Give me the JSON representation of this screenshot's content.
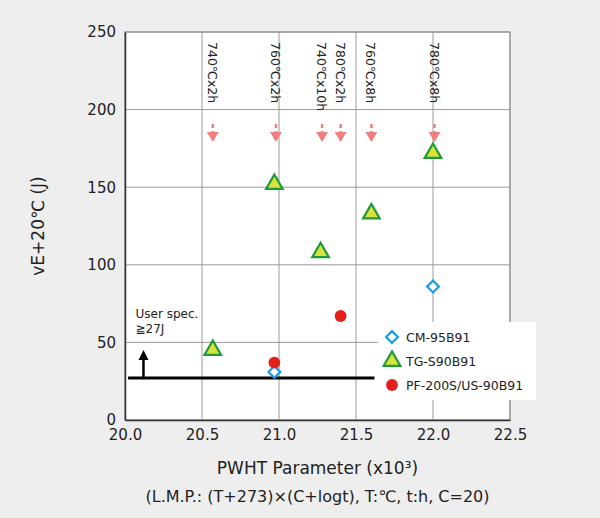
{
  "chart_data": {
    "type": "scatter",
    "x_label": "PWHT Parameter (x10³)",
    "x_label_2": "(L.M.P.: (T+273)×(C+logt), T:℃, t:h, C=20)",
    "y_label": "vE+20℃ (J)",
    "xlim": [
      20,
      22.5
    ],
    "xticks": [
      {
        "value": 20,
        "label": "20.0"
      },
      20.5,
      {
        "value": 21,
        "label": "21.0"
      },
      21.5,
      {
        "value": 22,
        "label": "22.0"
      },
      22.5
    ],
    "ylim": [
      0,
      250
    ],
    "yticks": [
      0,
      50,
      100,
      150,
      200,
      250
    ],
    "grid": true,
    "legend": "lower right",
    "series": [
      {
        "name": "CM-95B91",
        "color": "#1a9be6",
        "marker": "diamond",
        "x": [
          20.97,
          22.0
        ],
        "values": [
          31,
          86
        ]
      },
      {
        "name": "TG-S90B91",
        "color": "#1f9a3a",
        "marker": "triangle",
        "x": [
          20.57,
          20.97,
          21.27,
          21.6,
          22.0
        ],
        "values": [
          45,
          152,
          108,
          133,
          172
        ]
      },
      {
        "name": "PF-200S/US-90B91",
        "color": "#e3201e",
        "marker": "circle",
        "x": [
          20.97,
          21.4
        ],
        "values": [
          37,
          67
        ]
      }
    ],
    "annotations": [
      {
        "text": "740℃x2h",
        "x": 20.57
      },
      {
        "text": "760℃x2h",
        "x": 20.98
      },
      {
        "text": "740℃x10h",
        "x": 21.28
      },
      {
        "text": "780℃x2h",
        "x": 21.4
      },
      {
        "text": "760℃x8h",
        "x": 21.6
      },
      {
        "text": "780℃x8h",
        "x": 22.01
      }
    ],
    "spec": {
      "label": [
        "User spec.",
        "≧27J"
      ],
      "y": 27,
      "x": [
        20.02,
        21.62
      ],
      "arrow_x": 20.12
    }
  }
}
